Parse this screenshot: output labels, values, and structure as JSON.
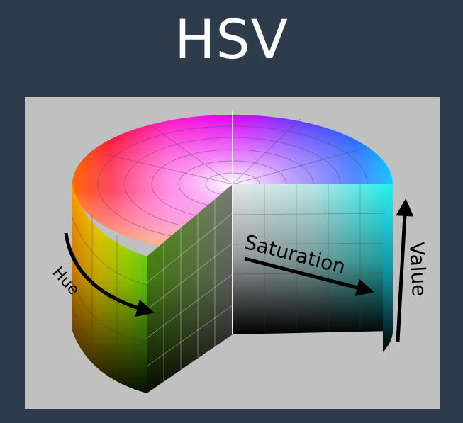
{
  "title": "HSV",
  "labels": {
    "hue": "Hue",
    "saturation": "Saturation",
    "value": "Value"
  },
  "colors": {
    "background": "#2e3b4b",
    "panel": "#c0c0c0",
    "title": "#ffffff",
    "arrow": "#000000"
  }
}
